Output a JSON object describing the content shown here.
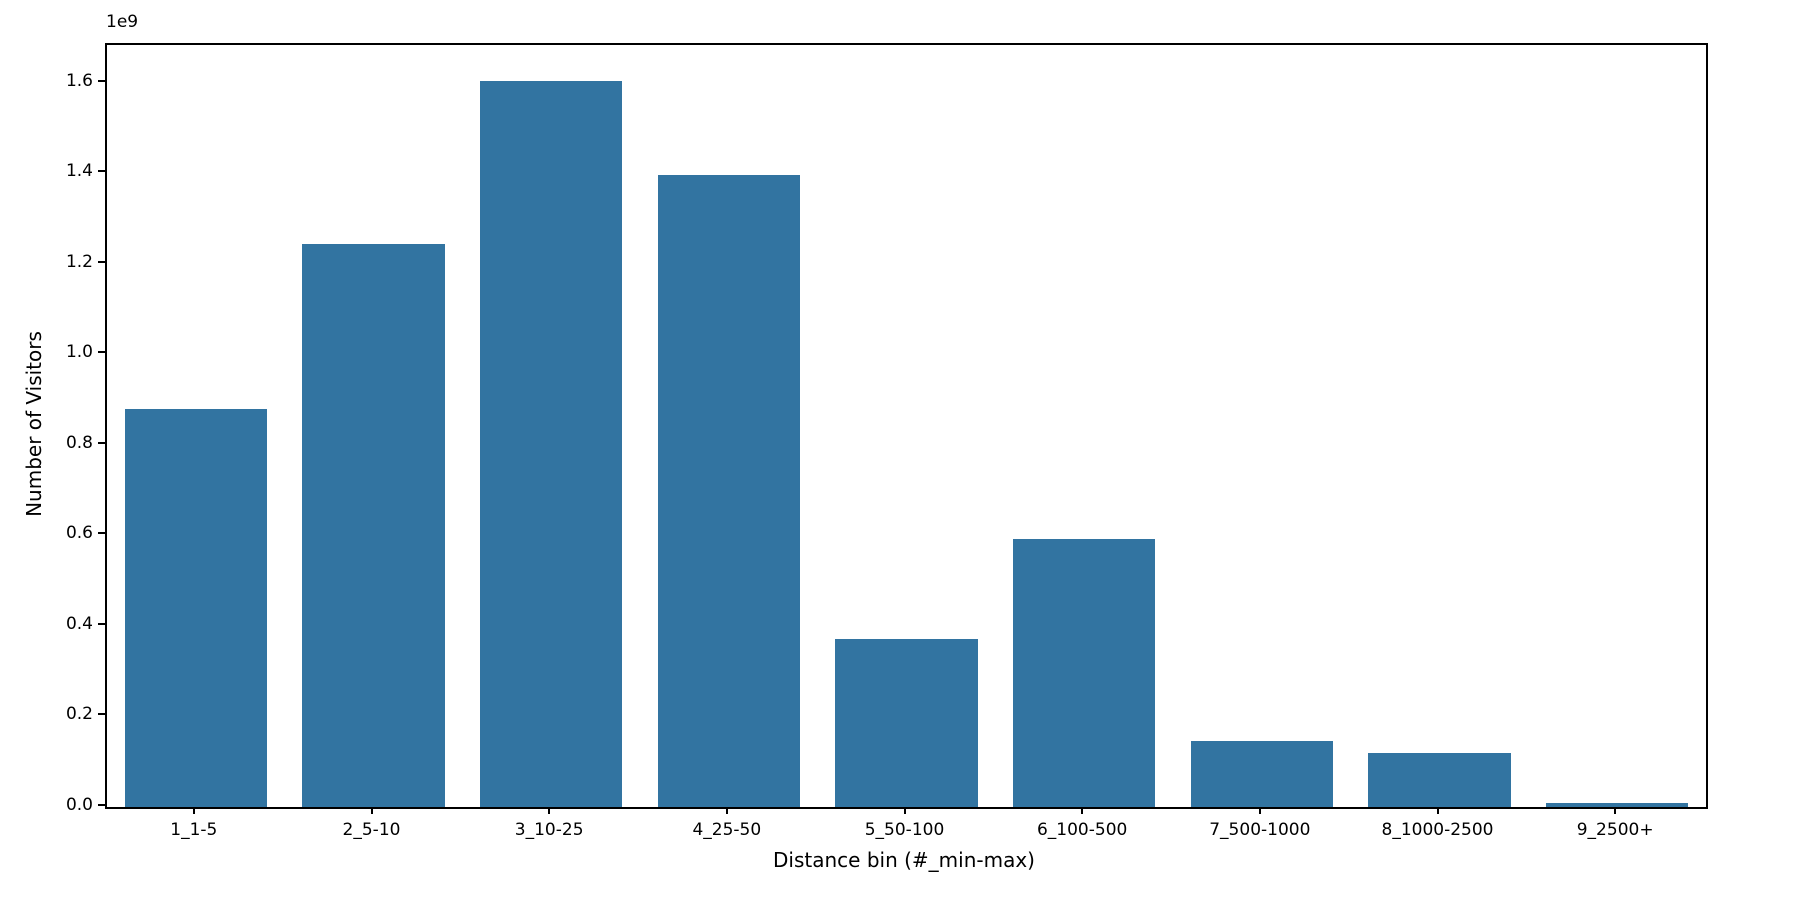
{
  "figure": {
    "background": "#ffffff"
  },
  "chart_data": {
    "type": "bar",
    "title": "",
    "xlabel": "Distance bin (#_min-max)",
    "ylabel": "Number of Visitors",
    "offset_label": "1e9",
    "categories": [
      "1_1-5",
      "2_5-10",
      "3_10-25",
      "4_25-50",
      "5_50-100",
      "6_100-500",
      "7_500-1000",
      "8_1000-2500",
      "9_2500+"
    ],
    "values": [
      878000000,
      1243000000,
      1603000000,
      1397000000,
      370000000,
      593000000,
      145000000,
      119000000,
      9000000
    ],
    "ylim": [
      0,
      1683000000
    ],
    "y_ticks": [
      0,
      200000000,
      400000000,
      600000000,
      800000000,
      1000000000,
      1200000000,
      1400000000,
      1600000000
    ],
    "y_tick_labels": [
      "0.0",
      "0.2",
      "0.4",
      "0.6",
      "0.8",
      "1.0",
      "1.2",
      "1.4",
      "1.6"
    ],
    "bar_color": "#3274a1",
    "axis_color": "#000000",
    "text_color": "#000000",
    "grid": false,
    "legend_position": "none",
    "bar_width_fraction": 0.8
  }
}
